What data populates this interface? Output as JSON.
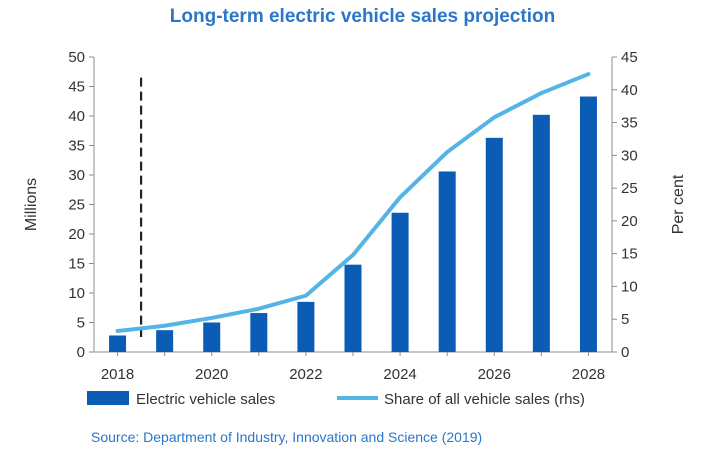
{
  "chart_data": {
    "type": "bar+line",
    "title": "Long-term electric vehicle sales projection",
    "source": "Source: Department of Industry, Innovation and Science (2019)",
    "categories": [
      2018,
      2019,
      2020,
      2021,
      2022,
      2023,
      2024,
      2025,
      2026,
      2027,
      2028
    ],
    "x_tick_labels": [
      "2018",
      "2020",
      "2022",
      "2024",
      "2026",
      "2028"
    ],
    "series": [
      {
        "name": "Electric vehicle sales",
        "type": "bar",
        "axis": "left",
        "values": [
          2.8,
          3.7,
          5.0,
          6.6,
          8.5,
          14.8,
          23.6,
          30.6,
          36.3,
          40.2,
          43.3
        ]
      },
      {
        "name": "Share of all vehicle sales (rhs)",
        "type": "line",
        "axis": "right",
        "values": [
          3.2,
          4.0,
          5.2,
          6.6,
          8.6,
          14.8,
          23.6,
          30.5,
          35.8,
          39.5,
          42.4
        ]
      }
    ],
    "ylabel_left": "Millions",
    "ylabel_right": "Per cent",
    "ylim_left": [
      0,
      50
    ],
    "ylim_right": [
      0,
      45
    ],
    "yticks_left": [
      "0",
      "5",
      "10",
      "15",
      "20",
      "25",
      "30",
      "35",
      "40",
      "45",
      "50"
    ],
    "yticks_right": [
      "0",
      "5",
      "10",
      "15",
      "20",
      "25",
      "30",
      "35",
      "40",
      "45"
    ],
    "vertical_marker_x": 2018.5,
    "legend_position": "bottom",
    "colors": {
      "bar": "#0a5cb5",
      "line": "#55b4e6",
      "title": "#2a77c9",
      "source": "#2a77c9",
      "marker": "#222222"
    }
  }
}
